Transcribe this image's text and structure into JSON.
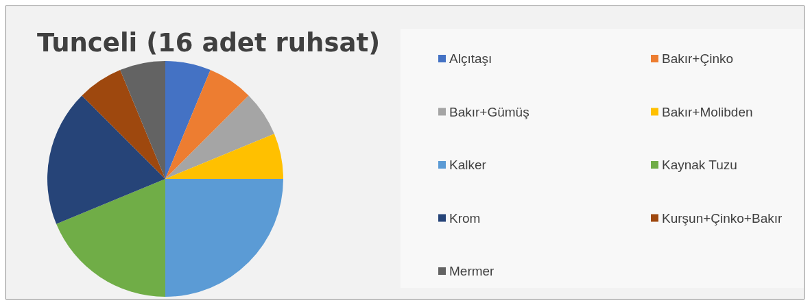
{
  "chart_data": {
    "type": "pie",
    "title": "Tunceli (16 adet ruhsat)",
    "categories": [
      "Alçıtaşı",
      "Bakır+Çinko",
      "Bakır+Gümüş",
      "Bakır+Molibden",
      "Kalker",
      "Kaynak Tuzu",
      "Krom",
      "Kurşun+Çinko+Bakır",
      "Mermer"
    ],
    "values": [
      6.25,
      6.25,
      6.25,
      6.25,
      25,
      18.75,
      18.75,
      6.25,
      6.25
    ],
    "colors": [
      "#4472c4",
      "#ed7d31",
      "#a5a5a5",
      "#ffc000",
      "#5b9bd5",
      "#70ad47",
      "#264478",
      "#9e480e",
      "#636363"
    ],
    "legend": "right"
  }
}
